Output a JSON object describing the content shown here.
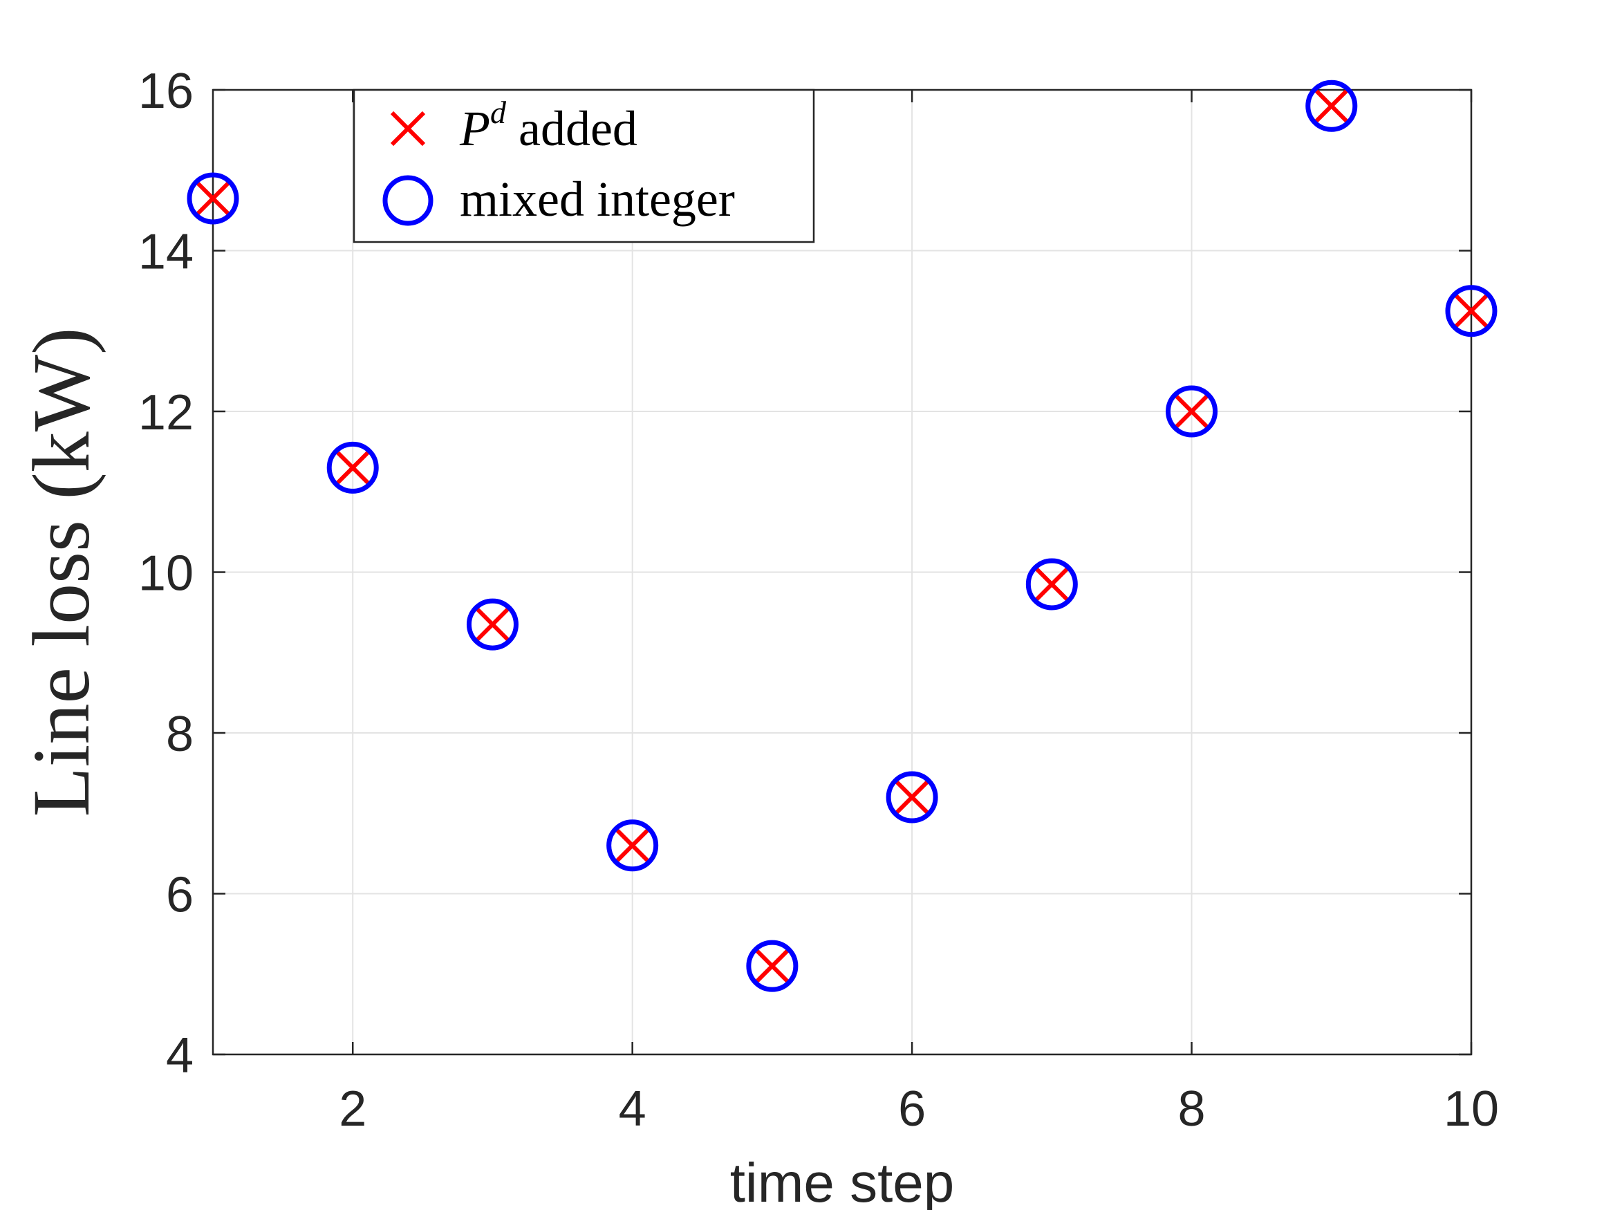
{
  "chart_data": {
    "type": "scatter",
    "title": "",
    "xlabel": "time step",
    "ylabel": "Line loss (kW)",
    "xlim": [
      1,
      10
    ],
    "ylim": [
      4,
      16
    ],
    "xticks": [
      2,
      4,
      6,
      8,
      10
    ],
    "yticks": [
      4,
      6,
      8,
      10,
      12,
      14,
      16
    ],
    "grid": true,
    "legend_position": "top-left",
    "series": [
      {
        "name_main": "P",
        "name_sup": "d",
        "name_rest": " added",
        "marker": "x",
        "color": "#ff0000",
        "x": [
          1,
          2,
          3,
          4,
          5,
          6,
          7,
          8,
          9,
          10
        ],
        "y": [
          14.65,
          11.3,
          9.35,
          6.6,
          5.1,
          7.2,
          9.85,
          12.0,
          15.8,
          13.25
        ]
      },
      {
        "name": "mixed integer",
        "marker": "o",
        "color": "#0000ff",
        "x": [
          1,
          2,
          3,
          4,
          5,
          6,
          7,
          8,
          9,
          10
        ],
        "y": [
          14.65,
          11.3,
          9.35,
          6.6,
          5.1,
          7.2,
          9.85,
          12.0,
          15.8,
          13.25
        ]
      }
    ]
  }
}
